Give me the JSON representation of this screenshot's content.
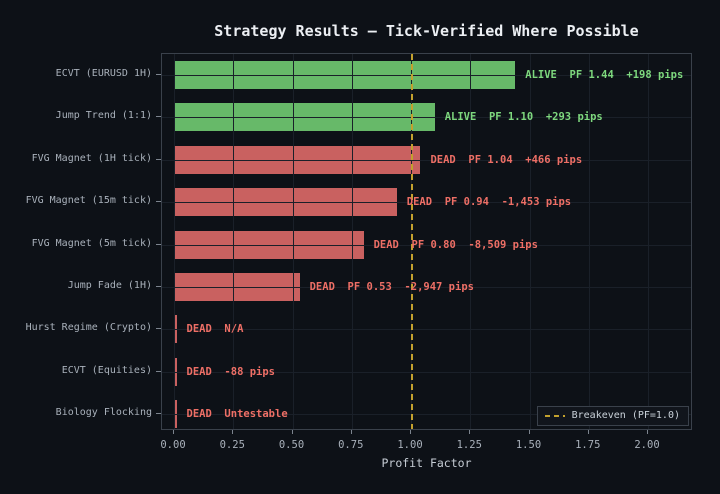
{
  "title": "Strategy Results — Tick-Verified Where Possible",
  "chart_data": {
    "type": "bar",
    "orientation": "horizontal",
    "title": "Strategy Results — Tick-Verified Where Possible",
    "xlabel": "Profit Factor",
    "ylabel": "",
    "xlim": [
      0,
      2.19
    ],
    "grid": true,
    "x_ticks": [
      0.0,
      0.25,
      0.5,
      0.75,
      1.0,
      1.25,
      1.5,
      1.75,
      2.0
    ],
    "x_tick_labels": [
      "0.00",
      "0.25",
      "0.50",
      "0.75",
      "1.00",
      "1.25",
      "1.50",
      "1.75",
      "2.00"
    ],
    "breakeven": {
      "value": 1.0,
      "legend_label": "Breakeven (PF=1.0)",
      "line_style": "dashed"
    },
    "legend_position": "lower right",
    "rows": [
      {
        "category": "ECVT (EURUSD 1H)",
        "pf": 1.44,
        "status": "ALIVE",
        "pips": "+198 pips",
        "annotation": "ALIVE  PF 1.44  +198 pips"
      },
      {
        "category": "Jump Trend (1:1)",
        "pf": 1.1,
        "status": "ALIVE",
        "pips": "+293 pips",
        "annotation": "ALIVE  PF 1.10  +293 pips"
      },
      {
        "category": "FVG Magnet (1H tick)",
        "pf": 1.04,
        "status": "DEAD",
        "pips": "+466 pips",
        "annotation": "DEAD  PF 1.04  +466 pips"
      },
      {
        "category": "FVG Magnet (15m tick)",
        "pf": 0.94,
        "status": "DEAD",
        "pips": "-1,453 pips",
        "annotation": "DEAD  PF 0.94  -1,453 pips"
      },
      {
        "category": "FVG Magnet (5m tick)",
        "pf": 0.8,
        "status": "DEAD",
        "pips": "-8,509 pips",
        "annotation": "DEAD  PF 0.80  -8,509 pips"
      },
      {
        "category": "Jump Fade (1H)",
        "pf": 0.53,
        "status": "DEAD",
        "pips": "-2,947 pips",
        "annotation": "DEAD  PF 0.53  -2,947 pips"
      },
      {
        "category": "Hurst Regime (Crypto)",
        "pf": null,
        "status": "DEAD",
        "pips": "N/A",
        "annotation": "DEAD  N/A"
      },
      {
        "category": "ECVT (Equities)",
        "pf": null,
        "status": "DEAD",
        "pips": "-88 pips",
        "annotation": "DEAD  -88 pips"
      },
      {
        "category": "Biology Flocking",
        "pf": null,
        "status": "DEAD",
        "pips": "Untestable",
        "annotation": "DEAD  Untestable"
      }
    ],
    "colors": {
      "background": "#0d1117",
      "alive_bar": "#67b969",
      "dead_bar": "#c96160",
      "alive_text": "#7ed87e",
      "dead_text": "#ee6f66",
      "breakeven": "#c3a12e"
    }
  }
}
